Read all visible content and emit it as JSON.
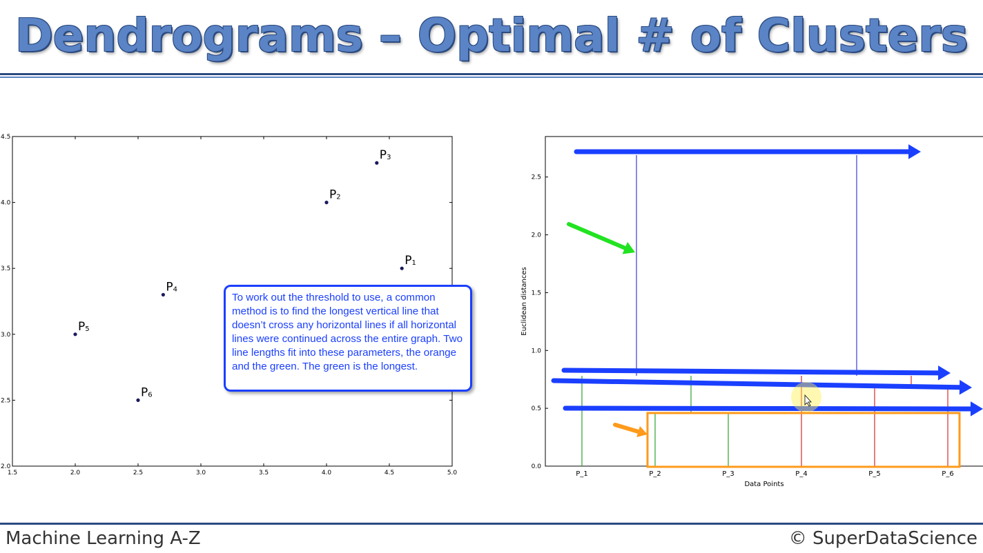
{
  "title": "Dendrograms – Optimal # of Clusters",
  "footer": {
    "left": "Machine Learning A-Z",
    "right": "© SuperDataScience"
  },
  "note": "To work out the threshold to use, a common method is to find the longest vertical line that doesn’t cross any horizontal lines if all horizontal lines were continued across the entire graph. Two line lengths fit into these parameters, the orange and the green. The green is the longest.",
  "chart_data": [
    {
      "type": "scatter",
      "xlim": [
        1.5,
        5.0
      ],
      "ylim": [
        2.0,
        4.5
      ],
      "x_ticks": [
        "1.5",
        "2.0",
        "2.5",
        "3.0",
        "3.5",
        "4.0",
        "4.5",
        "5.0"
      ],
      "y_ticks": [
        "2.0",
        "2.5",
        "3.0",
        "3.5",
        "4.0",
        "4.5"
      ],
      "points": [
        {
          "label": "P",
          "sub": "1",
          "x": 4.6,
          "y": 3.5
        },
        {
          "label": "P",
          "sub": "2",
          "x": 4.0,
          "y": 4.0
        },
        {
          "label": "P",
          "sub": "3",
          "x": 4.4,
          "y": 4.3
        },
        {
          "label": "P",
          "sub": "4",
          "x": 2.7,
          "y": 3.3
        },
        {
          "label": "P",
          "sub": "5",
          "x": 2.0,
          "y": 3.0
        },
        {
          "label": "P",
          "sub": "6",
          "x": 2.5,
          "y": 2.5
        }
      ],
      "color": "#1a1a5e"
    },
    {
      "type": "dendrogram",
      "xlabel": "Data Points",
      "ylabel": "Euclidean distances",
      "ylim": [
        0,
        2.85
      ],
      "y_ticks": [
        "0.0",
        "0.5",
        "1.0",
        "1.5",
        "2.0",
        "2.5"
      ],
      "categories": [
        "P_1",
        "P_2",
        "P_3",
        "P_4",
        "P_5",
        "P_6"
      ],
      "colors": {
        "cluster_a": "#2ca02c",
        "cluster_b": "#d62728",
        "root": "#3b3bd6",
        "threshold_arrow": "#1a3fff",
        "green_arrow": "#22e322",
        "orange_arrow": "#ff9a1a",
        "orange_box": "#ff9a1a"
      }
    }
  ]
}
